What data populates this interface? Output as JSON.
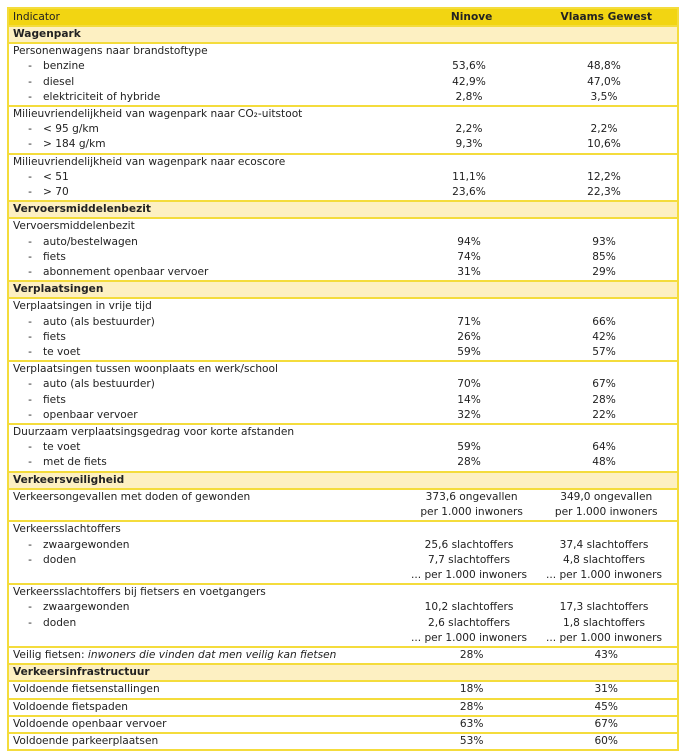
{
  "header": {
    "indicator": "Indicator",
    "ninove": "Ninove",
    "vlaams": "Vlaams Gewest"
  },
  "sections": [
    {
      "title": "Wagenpark",
      "groups": [
        {
          "title": "Personenwagens naar brandstoftype",
          "rows": [
            {
              "label": "benzine",
              "ninove": [
                "53,6%"
              ],
              "vlaams": [
                "48,8%"
              ]
            },
            {
              "label": "diesel",
              "ninove": [
                "42,9%"
              ],
              "vlaams": [
                "47,0%"
              ]
            },
            {
              "label": "elektriciteit of hybride",
              "ninove": [
                "2,8%"
              ],
              "vlaams": [
                "3,5%"
              ]
            }
          ]
        },
        {
          "title": "Milieuvriendelijkheid van wagenpark naar CO₂-uitstoot",
          "rows": [
            {
              "label": "< 95 g/km",
              "ninove": [
                "2,2%"
              ],
              "vlaams": [
                "2,2%"
              ]
            },
            {
              "label": "> 184 g/km",
              "ninove": [
                "9,3%"
              ],
              "vlaams": [
                "10,6%"
              ]
            }
          ]
        },
        {
          "title": "Milieuvriendelijkheid van wagenpark naar ecoscore",
          "rows": [
            {
              "label": "< 51",
              "ninove": [
                "11,1%"
              ],
              "vlaams": [
                "12,2%"
              ]
            },
            {
              "label": "> 70",
              "ninove": [
                "23,6%"
              ],
              "vlaams": [
                "22,3%"
              ]
            }
          ]
        }
      ]
    },
    {
      "title": "Vervoersmiddelenbezit",
      "groups": [
        {
          "title": "Vervoersmiddelenbezit",
          "rows": [
            {
              "label": "auto/bestelwagen",
              "ninove": [
                "94%"
              ],
              "vlaams": [
                "93%"
              ]
            },
            {
              "label": "fiets",
              "ninove": [
                "74%"
              ],
              "vlaams": [
                "85%"
              ]
            },
            {
              "label": "abonnement openbaar vervoer",
              "ninove": [
                "31%"
              ],
              "vlaams": [
                "29%"
              ]
            }
          ]
        }
      ]
    },
    {
      "title": "Verplaatsingen",
      "groups": [
        {
          "title": "Verplaatsingen in vrije tijd",
          "rows": [
            {
              "label": "auto (als bestuurder)",
              "ninove": [
                "71%"
              ],
              "vlaams": [
                "66%"
              ]
            },
            {
              "label": "fiets",
              "ninove": [
                "26%"
              ],
              "vlaams": [
                "42%"
              ]
            },
            {
              "label": "te voet",
              "ninove": [
                "59%"
              ],
              "vlaams": [
                "57%"
              ]
            }
          ]
        },
        {
          "title": "Verplaatsingen tussen woonplaats en werk/school",
          "rows": [
            {
              "label": "auto (als bestuurder)",
              "ninove": [
                "70%"
              ],
              "vlaams": [
                "67%"
              ]
            },
            {
              "label": "fiets",
              "ninove": [
                "14%"
              ],
              "vlaams": [
                "28%"
              ]
            },
            {
              "label": "openbaar vervoer",
              "ninove": [
                "32%"
              ],
              "vlaams": [
                "22%"
              ]
            }
          ]
        },
        {
          "title": "Duurzaam verplaatsingsgedrag voor korte afstanden",
          "rows": [
            {
              "label": "te voet",
              "ninove": [
                "59%"
              ],
              "vlaams": [
                "64%"
              ]
            },
            {
              "label": "met de fiets",
              "ninove": [
                "28%"
              ],
              "vlaams": [
                "48%"
              ]
            }
          ]
        }
      ]
    },
    {
      "title": "Verkeersveiligheid",
      "groups": [
        {
          "title": "Verkeersongevallen met doden of gewonden",
          "title_values": {
            "ninove": [
              "373,6 ongevallen",
              "per 1.000 inwoners"
            ],
            "vlaams": [
              "349,0 ongevallen",
              "per 1.000 inwoners"
            ]
          },
          "rows": []
        },
        {
          "title": "Verkeersslachtoffers",
          "rows": [
            {
              "label": "zwaargewonden",
              "ninove": [
                "25,6 slachtoffers"
              ],
              "vlaams": [
                "37,4 slachtoffers"
              ]
            },
            {
              "label": "doden",
              "ninove": [
                "7,7 slachtoffers",
                "... per 1.000 inwoners"
              ],
              "vlaams": [
                "4,8 slachtoffers",
                "... per 1.000 inwoners"
              ]
            }
          ]
        },
        {
          "title": "Verkeersslachtoffers bij fietsers en voetgangers",
          "rows": [
            {
              "label": "zwaargewonden",
              "ninove": [
                "10,2 slachtoffers"
              ],
              "vlaams": [
                "17,3 slachtoffers"
              ]
            },
            {
              "label": "doden",
              "ninove": [
                "2,6 slachtoffers",
                "... per 1.000 inwoners"
              ],
              "vlaams": [
                "1,8 slachtoffers",
                "... per 1.000 inwoners"
              ]
            }
          ]
        },
        {
          "title": "Veilig fietsen: ",
          "title_italic": "inwoners die vinden dat men veilig kan fietsen",
          "title_values": {
            "ninove": [
              "28%"
            ],
            "vlaams": [
              "43%"
            ]
          },
          "rows": []
        }
      ]
    },
    {
      "title": "Verkeersinfrastructuur",
      "groups": [
        {
          "title": "Voldoende fietsenstallingen",
          "title_values": {
            "ninove": [
              "18%"
            ],
            "vlaams": [
              "31%"
            ]
          },
          "rows": [],
          "plain": true
        },
        {
          "title": "Voldoende fietspaden",
          "title_values": {
            "ninove": [
              "28%"
            ],
            "vlaams": [
              "45%"
            ]
          },
          "rows": [],
          "plain": true
        },
        {
          "title": "Voldoende openbaar vervoer",
          "title_values": {
            "ninove": [
              "63%"
            ],
            "vlaams": [
              "67%"
            ]
          },
          "rows": [],
          "plain": true
        },
        {
          "title": "Voldoende parkeerplaatsen",
          "title_values": {
            "ninove": [
              "53%"
            ],
            "vlaams": [
              "60%"
            ]
          },
          "rows": [],
          "plain": true
        }
      ]
    }
  ],
  "dash": "-"
}
